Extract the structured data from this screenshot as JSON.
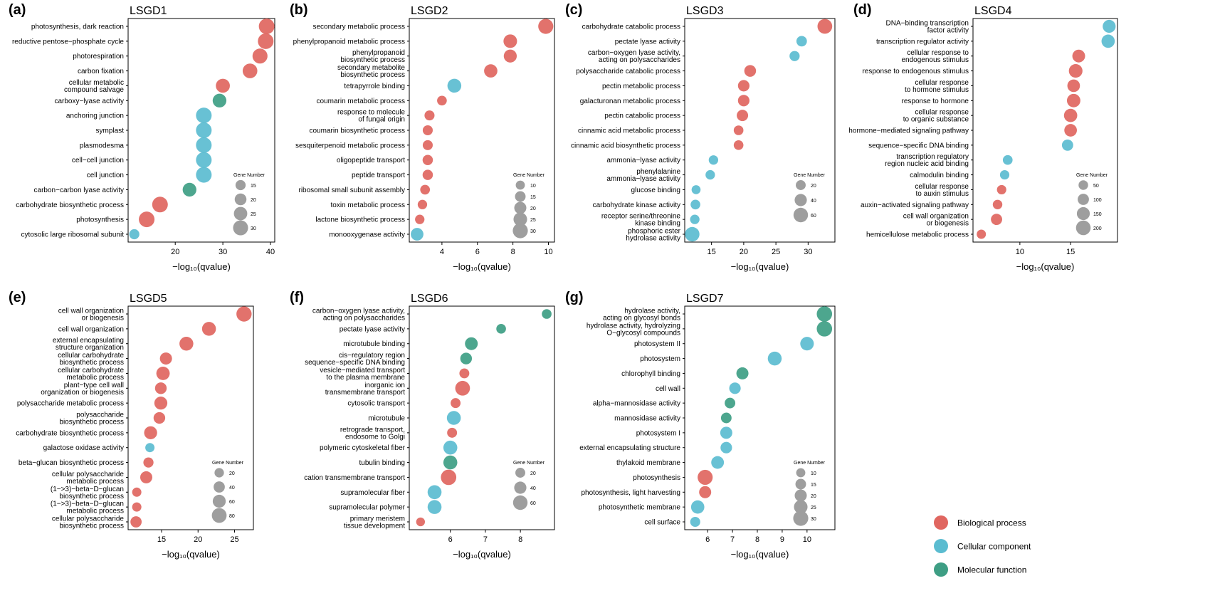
{
  "legend": {
    "entries": [
      {
        "label": "Biological process",
        "color": "#E06660"
      },
      {
        "label": "Cellular component",
        "color": "#5BBCD0"
      },
      {
        "label": "Molecular function",
        "color": "#3E9E84"
      }
    ]
  },
  "gene_legend_title": "Gene Number",
  "chart_data": [
    {
      "id": "a",
      "type": "scatter",
      "panel_label": "(a)",
      "title": "LSGD1",
      "xlabel": "−log₁₀(qvalue)",
      "xlim": [
        11,
        40
      ],
      "xticks": [
        20,
        30,
        40
      ],
      "size_legend": [
        15,
        20,
        25,
        30
      ],
      "size_range": [
        10,
        32
      ],
      "terms": [
        {
          "label": "photosynthesis, dark reaction",
          "x": 39.2,
          "size": 32,
          "cat": "BP"
        },
        {
          "label": "reductive pentose−phosphate cycle",
          "x": 39.0,
          "size": 32,
          "cat": "BP"
        },
        {
          "label": "photorespiration",
          "x": 37.8,
          "size": 30,
          "cat": "BP"
        },
        {
          "label": "carbon fixation",
          "x": 35.7,
          "size": 29,
          "cat": "BP"
        },
        {
          "label": "cellular metabolic compound salvage",
          "x": 30.0,
          "size": 27,
          "cat": "BP"
        },
        {
          "label": "carboxy−lyase activity",
          "x": 29.3,
          "size": 26,
          "cat": "MF"
        },
        {
          "label": "anchoring junction",
          "x": 26.0,
          "size": 32,
          "cat": "CC"
        },
        {
          "label": "symplast",
          "x": 26.0,
          "size": 32,
          "cat": "CC"
        },
        {
          "label": "plasmodesma",
          "x": 26.0,
          "size": 32,
          "cat": "CC"
        },
        {
          "label": "cell−cell junction",
          "x": 26.0,
          "size": 32,
          "cat": "CC"
        },
        {
          "label": "cell junction",
          "x": 26.0,
          "size": 32,
          "cat": "CC"
        },
        {
          "label": "carbon−carbon lyase activity",
          "x": 23.0,
          "size": 26,
          "cat": "MF"
        },
        {
          "label": "carbohydrate biosynthetic process",
          "x": 16.8,
          "size": 32,
          "cat": "BP"
        },
        {
          "label": "photosynthesis",
          "x": 14.0,
          "size": 32,
          "cat": "BP"
        },
        {
          "label": "cytosolic large ribosomal subunit",
          "x": 11.4,
          "size": 15,
          "cat": "CC"
        }
      ]
    },
    {
      "id": "b",
      "type": "scatter",
      "panel_label": "(b)",
      "title": "LSGD2",
      "xlabel": "−log₁₀(qvalue)",
      "xlim": [
        2.4,
        10.1
      ],
      "xticks": [
        4,
        6,
        8,
        10
      ],
      "size_legend": [
        10,
        15,
        20,
        25,
        30
      ],
      "size_range": [
        8,
        32
      ],
      "terms": [
        {
          "label": "secondary metabolic process",
          "x": 9.85,
          "size": 30,
          "cat": "BP"
        },
        {
          "label": "phenylpropanoid metabolic process",
          "x": 7.85,
          "size": 25,
          "cat": "BP"
        },
        {
          "label": "phenylpropanoid biosynthetic process",
          "x": 7.85,
          "size": 23,
          "cat": "BP"
        },
        {
          "label": "secondary metabolite biosynthetic process",
          "x": 6.75,
          "size": 24,
          "cat": "BP"
        },
        {
          "label": "tetrapyrrole binding",
          "x": 4.7,
          "size": 26,
          "cat": "MF_blue"
        },
        {
          "label": "coumarin metabolic process",
          "x": 4.0,
          "size": 12,
          "cat": "BP"
        },
        {
          "label": "response to molecule of fungal origin",
          "x": 3.3,
          "size": 13,
          "cat": "BP"
        },
        {
          "label": "coumarin biosynthetic process",
          "x": 3.2,
          "size": 13,
          "cat": "BP"
        },
        {
          "label": "sesquiterpenoid metabolic process",
          "x": 3.2,
          "size": 13,
          "cat": "BP"
        },
        {
          "label": "oligopeptide transport",
          "x": 3.2,
          "size": 14,
          "cat": "BP"
        },
        {
          "label": "peptide transport",
          "x": 3.2,
          "size": 14,
          "cat": "BP"
        },
        {
          "label": "ribosomal small subunit assembly",
          "x": 3.05,
          "size": 12,
          "cat": "BP"
        },
        {
          "label": "toxin metabolic process",
          "x": 2.9,
          "size": 11,
          "cat": "BP"
        },
        {
          "label": "lactone biosynthetic process",
          "x": 2.75,
          "size": 11,
          "cat": "BP"
        },
        {
          "label": "monooxygenase activity",
          "x": 2.6,
          "size": 22,
          "cat": "CC"
        }
      ]
    },
    {
      "id": "c",
      "type": "scatter",
      "panel_label": "(c)",
      "title": "LSGD3",
      "xlabel": "−log₁₀(qvalue)",
      "xlim": [
        11.5,
        33.5
      ],
      "xticks": [
        15,
        20,
        25,
        30
      ],
      "size_legend": [
        20,
        40,
        60
      ],
      "size_range": [
        8,
        70
      ],
      "terms": [
        {
          "label": "carbohydrate catabolic process",
          "x": 32.6,
          "size": 62,
          "cat": "BP"
        },
        {
          "label": "pectate lyase activity",
          "x": 29.0,
          "size": 25,
          "cat": "CC"
        },
        {
          "label": "carbon−oxygen lyase activity, acting on polysaccharides",
          "x": 27.9,
          "size": 22,
          "cat": "CC"
        },
        {
          "label": "polysaccharide catabolic process",
          "x": 21.0,
          "size": 36,
          "cat": "BP"
        },
        {
          "label": "pectin metabolic process",
          "x": 20.0,
          "size": 34,
          "cat": "BP"
        },
        {
          "label": "galacturonan metabolic process",
          "x": 20.0,
          "size": 34,
          "cat": "BP"
        },
        {
          "label": "pectin catabolic process",
          "x": 19.8,
          "size": 33,
          "cat": "BP"
        },
        {
          "label": "cinnamic acid metabolic process",
          "x": 19.2,
          "size": 18,
          "cat": "BP"
        },
        {
          "label": "cinnamic acid biosynthetic process",
          "x": 19.2,
          "size": 18,
          "cat": "BP"
        },
        {
          "label": "ammonia−lyase activity",
          "x": 15.3,
          "size": 16,
          "cat": "CC"
        },
        {
          "label": "phenylalanine ammonia−lyase activity",
          "x": 14.8,
          "size": 16,
          "cat": "CC"
        },
        {
          "label": "glucose binding",
          "x": 12.6,
          "size": 12,
          "cat": "CC"
        },
        {
          "label": "carbohydrate kinase activity",
          "x": 12.5,
          "size": 18,
          "cat": "CC"
        },
        {
          "label": "receptor serine/threonine kinase binding",
          "x": 12.4,
          "size": 16,
          "cat": "CC"
        },
        {
          "label": "phosphoric ester hydrolase activity",
          "x": 12.0,
          "size": 60,
          "cat": "CC"
        }
      ]
    },
    {
      "id": "d",
      "type": "scatter",
      "panel_label": "(d)",
      "title": "LSGD4",
      "xlabel": "−log₁₀(qvalue)",
      "xlim": [
        5.8,
        19.2
      ],
      "xticks": [
        10,
        15
      ],
      "size_legend": [
        50,
        100,
        150,
        200
      ],
      "size_range": [
        20,
        230
      ],
      "terms": [
        {
          "label": "DNA−binding transcription factor activity",
          "x": 18.8,
          "size": 150,
          "cat": "CC"
        },
        {
          "label": "transcription regulator activity",
          "x": 18.7,
          "size": 160,
          "cat": "CC"
        },
        {
          "label": "cellular response to endogenous stimulus",
          "x": 15.8,
          "size": 145,
          "cat": "BP"
        },
        {
          "label": "response to endogenous stimulus",
          "x": 15.5,
          "size": 170,
          "cat": "BP"
        },
        {
          "label": "cellular response to hormone stimulus",
          "x": 15.3,
          "size": 140,
          "cat": "BP"
        },
        {
          "label": "response to hormone",
          "x": 15.3,
          "size": 165,
          "cat": "BP"
        },
        {
          "label": "cellular response to organic substance",
          "x": 15.0,
          "size": 160,
          "cat": "BP"
        },
        {
          "label": "hormone−mediated signaling pathway",
          "x": 15.0,
          "size": 140,
          "cat": "BP"
        },
        {
          "label": "sequence−specific DNA binding",
          "x": 14.7,
          "size": 100,
          "cat": "CC"
        },
        {
          "label": "transcription regulatory region nucleic acid binding",
          "x": 8.8,
          "size": 55,
          "cat": "CC"
        },
        {
          "label": "calmodulin binding",
          "x": 8.5,
          "size": 45,
          "cat": "CC"
        },
        {
          "label": "cellular response to auxin stimulus",
          "x": 8.2,
          "size": 45,
          "cat": "BP"
        },
        {
          "label": "auxin−activated signaling pathway",
          "x": 7.8,
          "size": 50,
          "cat": "BP"
        },
        {
          "label": "cell wall organization or biogenesis",
          "x": 7.7,
          "size": 100,
          "cat": "BP"
        },
        {
          "label": "hemicellulose metabolic process",
          "x": 6.2,
          "size": 40,
          "cat": "BP"
        }
      ]
    },
    {
      "id": "e",
      "type": "scatter",
      "panel_label": "(e)",
      "title": "LSGD5",
      "xlabel": "−log₁₀(qvalue)",
      "xlim": [
        11,
        27
      ],
      "xticks": [
        15,
        20,
        25
      ],
      "size_legend": [
        20,
        40,
        60,
        80
      ],
      "size_range": [
        10,
        90
      ],
      "terms": [
        {
          "label": "cell wall organization or biogenesis",
          "x": 26.3,
          "size": 85,
          "cat": "BP"
        },
        {
          "label": "cell wall organization",
          "x": 21.5,
          "size": 70,
          "cat": "BP"
        },
        {
          "label": "external encapsulating structure organization",
          "x": 18.4,
          "size": 70,
          "cat": "BP"
        },
        {
          "label": "cellular carbohydrate biosynthetic process",
          "x": 15.6,
          "size": 50,
          "cat": "BP"
        },
        {
          "label": "cellular carbohydrate metabolic process",
          "x": 15.2,
          "size": 65,
          "cat": "BP"
        },
        {
          "label": "plant−type cell wall organization or biogenesis",
          "x": 14.9,
          "size": 45,
          "cat": "BP"
        },
        {
          "label": "polysaccharide metabolic process",
          "x": 14.9,
          "size": 60,
          "cat": "BP"
        },
        {
          "label": "polysaccharide biosynthetic process",
          "x": 14.7,
          "size": 45,
          "cat": "BP"
        },
        {
          "label": "carbohydrate biosynthetic process",
          "x": 13.5,
          "size": 60,
          "cat": "BP"
        },
        {
          "label": "galactose oxidase activity",
          "x": 13.4,
          "size": 18,
          "cat": "CC"
        },
        {
          "label": "beta−glucan biosynthetic process",
          "x": 13.2,
          "size": 28,
          "cat": "BP"
        },
        {
          "label": "cellular polysaccharide metabolic process",
          "x": 12.9,
          "size": 50,
          "cat": "BP"
        },
        {
          "label": "(1−>3)−beta−D−glucan biosynthetic process",
          "x": 11.6,
          "size": 18,
          "cat": "BP"
        },
        {
          "label": "(1−>3)−beta−D−glucan metabolic process",
          "x": 11.6,
          "size": 18,
          "cat": "BP"
        },
        {
          "label": "cellular polysaccharide biosynthetic process",
          "x": 11.5,
          "size": 40,
          "cat": "BP"
        }
      ]
    },
    {
      "id": "f",
      "type": "scatter",
      "panel_label": "(f)",
      "title": "LSGD6",
      "xlabel": "−log₁₀(qvalue)",
      "xlim": [
        4.95,
        8.85
      ],
      "xticks": [
        6,
        7,
        8
      ],
      "size_legend": [
        20,
        40,
        60
      ],
      "size_range": [
        8,
        70
      ],
      "terms": [
        {
          "label": "carbon−oxygen lyase activity, acting on polysaccharides",
          "x": 8.75,
          "size": 18,
          "cat": "MF"
        },
        {
          "label": "pectate lyase activity",
          "x": 7.45,
          "size": 18,
          "cat": "MF"
        },
        {
          "label": "microtubule binding",
          "x": 6.6,
          "size": 45,
          "cat": "MF"
        },
        {
          "label": "cis−regulatory region sequence−specific DNA binding",
          "x": 6.45,
          "size": 35,
          "cat": "MF"
        },
        {
          "label": "vesicle−mediated transport to the plasma membrane",
          "x": 6.4,
          "size": 20,
          "cat": "BP"
        },
        {
          "label": "inorganic ion transmembrane transport",
          "x": 6.35,
          "size": 62,
          "cat": "BP"
        },
        {
          "label": "cytosolic transport",
          "x": 6.15,
          "size": 20,
          "cat": "BP"
        },
        {
          "label": "microtubule",
          "x": 6.1,
          "size": 55,
          "cat": "CC"
        },
        {
          "label": "retrograde transport, endosome to Golgi",
          "x": 6.05,
          "size": 20,
          "cat": "BP"
        },
        {
          "label": "polymeric cytoskeletal fiber",
          "x": 6.0,
          "size": 55,
          "cat": "CC"
        },
        {
          "label": "tubulin binding",
          "x": 6.0,
          "size": 55,
          "cat": "MF"
        },
        {
          "label": "cation transmembrane transport",
          "x": 5.95,
          "size": 68,
          "cat": "BP"
        },
        {
          "label": "supramolecular fiber",
          "x": 5.55,
          "size": 55,
          "cat": "CC"
        },
        {
          "label": "supramolecular polymer",
          "x": 5.55,
          "size": 55,
          "cat": "CC"
        },
        {
          "label": "primary meristem tissue development",
          "x": 5.15,
          "size": 10,
          "cat": "BP"
        }
      ]
    },
    {
      "id": "g",
      "type": "scatter",
      "panel_label": "(g)",
      "title": "LSGD7",
      "xlabel": "−log₁₀(qvalue)",
      "xlim": [
        5.25,
        10.95
      ],
      "xticks": [
        6,
        7,
        8,
        9,
        10
      ],
      "size_legend": [
        10,
        15,
        20,
        25,
        30
      ],
      "size_range": [
        8,
        32
      ],
      "terms": [
        {
          "label": "hydrolase activity, acting on glycosyl bonds",
          "x": 10.7,
          "size": 31,
          "cat": "MF"
        },
        {
          "label": "hydrolase activity, hydrolyzing O−glycosyl compounds",
          "x": 10.7,
          "size": 31,
          "cat": "MF"
        },
        {
          "label": "photosystem II",
          "x": 10.0,
          "size": 25,
          "cat": "CC"
        },
        {
          "label": "photosystem",
          "x": 8.7,
          "size": 26,
          "cat": "CC"
        },
        {
          "label": "chlorophyll binding",
          "x": 7.4,
          "size": 20,
          "cat": "MF"
        },
        {
          "label": "cell wall",
          "x": 7.1,
          "size": 18,
          "cat": "CC"
        },
        {
          "label": "alpha−mannosidase activity",
          "x": 6.9,
          "size": 15,
          "cat": "MF"
        },
        {
          "label": "mannosidase activity",
          "x": 6.75,
          "size": 15,
          "cat": "MF"
        },
        {
          "label": "photosystem I",
          "x": 6.75,
          "size": 20,
          "cat": "CC"
        },
        {
          "label": "external encapsulating structure",
          "x": 6.75,
          "size": 18,
          "cat": "CC"
        },
        {
          "label": "thylakoid membrane",
          "x": 6.4,
          "size": 22,
          "cat": "CC"
        },
        {
          "label": "photosynthesis",
          "x": 5.9,
          "size": 30,
          "cat": "BP"
        },
        {
          "label": "photosynthesis, light harvesting",
          "x": 5.9,
          "size": 20,
          "cat": "BP"
        },
        {
          "label": "photosynthetic membrane",
          "x": 5.6,
          "size": 24,
          "cat": "CC"
        },
        {
          "label": "cell surface",
          "x": 5.5,
          "size": 13,
          "cat": "CC"
        }
      ]
    }
  ]
}
